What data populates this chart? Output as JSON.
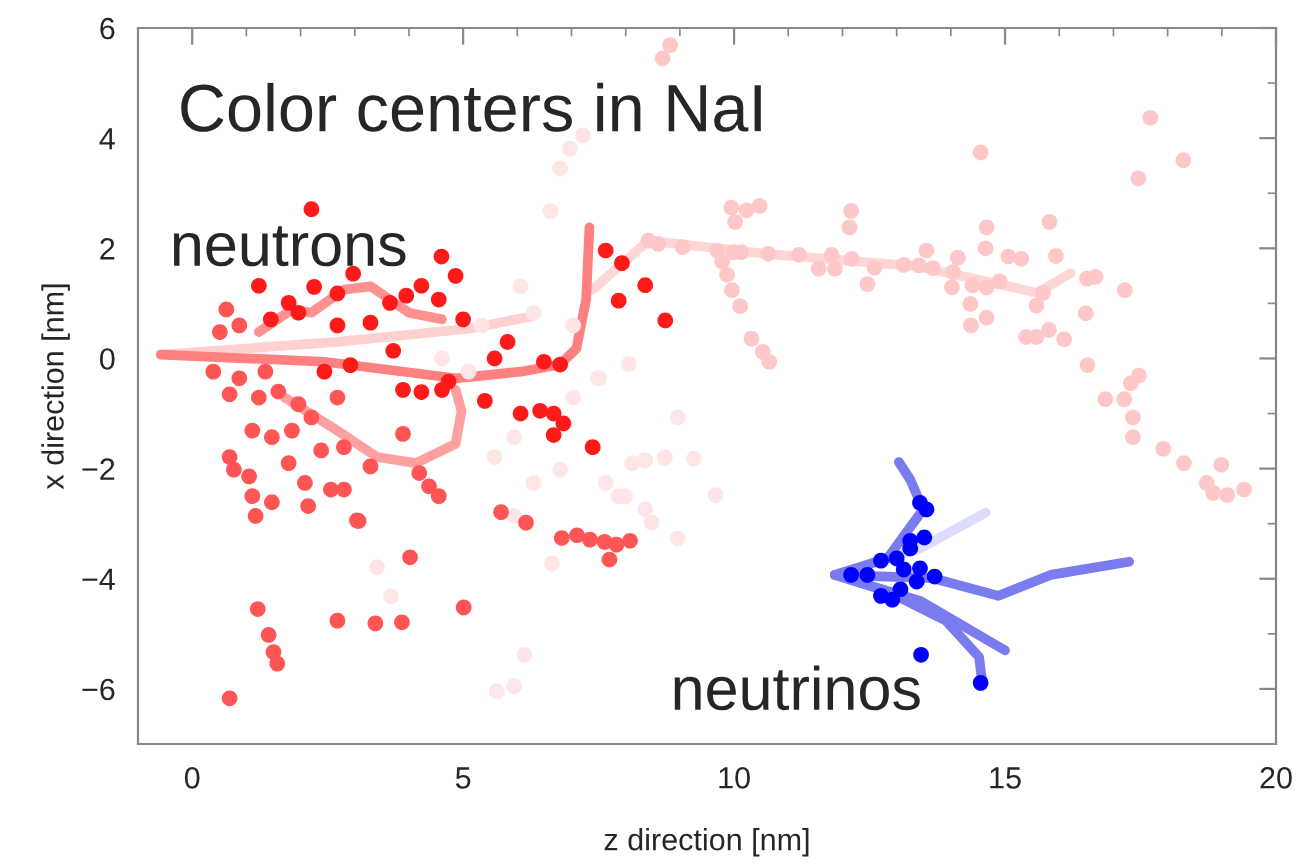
{
  "chart_data": {
    "type": "scatter",
    "title": "Color centers in NaI",
    "xlabel": "z direction [nm]",
    "ylabel": "x direction [nm]",
    "annotations": [
      "neutrons",
      "neutrinos"
    ],
    "xlim": [
      -1,
      20
    ],
    "ylim": [
      -7,
      6
    ],
    "xticks": [
      0,
      {
        "value": 1,
        "label": null
      },
      {
        "value": 2,
        "label": null
      },
      {
        "value": 3,
        "label": null
      },
      {
        "value": 4,
        "label": null
      },
      5,
      {
        "value": 6,
        "label": null
      },
      {
        "value": 7,
        "label": null
      },
      {
        "value": 8,
        "label": null
      },
      {
        "value": 9,
        "label": null
      },
      10,
      {
        "value": 11,
        "label": null
      },
      {
        "value": 12,
        "label": null
      },
      {
        "value": 13,
        "label": null
      },
      {
        "value": 14,
        "label": null
      },
      15,
      {
        "value": 16,
        "label": null
      },
      {
        "value": 17,
        "label": null
      },
      {
        "value": 18,
        "label": null
      },
      {
        "value": 19,
        "label": null
      },
      20
    ],
    "yticks": [
      -6,
      {
        "value": -5,
        "label": null
      },
      -4,
      {
        "value": -3,
        "label": null
      },
      -2,
      {
        "value": -1,
        "label": null
      },
      0,
      {
        "value": 1,
        "label": null
      },
      2,
      {
        "value": 3,
        "label": null
      },
      4,
      {
        "value": 5,
        "label": null
      },
      6
    ],
    "grid": false,
    "legend": false,
    "marker": "circle",
    "series": [
      {
        "type": "line",
        "marker": "none",
        "color": "#ffd6d6",
        "x": [
          7.39,
          8.42,
          10.6,
          13.4,
          15.6,
          16.21
        ],
        "values": [
          1.25,
          2.14,
          1.9,
          1.67,
          1.19,
          1.55
        ]
      },
      {
        "type": "line",
        "marker": "none",
        "color": "#ffd0d0",
        "x": [
          -0.58,
          2.68,
          5.1,
          6.3
        ],
        "values": [
          0.07,
          0.3,
          0.54,
          0.77
        ]
      },
      {
        "type": "line",
        "marker": "none",
        "color": "#ff8080",
        "x": [
          -0.58,
          2.44,
          4.86,
          6.06,
          6.79,
          7.09,
          7.27,
          7.33
        ],
        "values": [
          0.07,
          -0.06,
          -0.36,
          -0.24,
          -0.11,
          0.18,
          1.07,
          2.38
        ]
      },
      {
        "type": "line",
        "marker": "none",
        "color": "#ffa0a0",
        "x": [
          1.71,
          2.68,
          3.41,
          4.13,
          4.86,
          4.97,
          4.86
        ],
        "values": [
          -0.71,
          -1.31,
          -1.79,
          -1.9,
          -1.55,
          -0.95,
          -0.57
        ]
      },
      {
        "type": "line",
        "marker": "none",
        "color": "#ff9090",
        "x": [
          1.23,
          1.84,
          2.2,
          2.8,
          3.29,
          3.65,
          4.0,
          4.61
        ],
        "values": [
          0.48,
          0.89,
          0.83,
          1.25,
          1.31,
          1.07,
          0.83,
          0.71
        ]
      },
      {
        "color": "#ffe6e6",
        "x": [
          7.63,
          7.99,
          8.36,
          8.48,
          8.96,
          8.12,
          6.79,
          6.3,
          5.94,
          6.64,
          3.41,
          3.67,
          5.62,
          5.94,
          6.13,
          6.61,
          6.06,
          6.3,
          7.03,
          5.34,
          4.61,
          5.1,
          5.94,
          5.58,
          7.51,
          7.03,
          8.96,
          8.72,
          6.79,
          6.97,
          7.21,
          8.06,
          7.49,
          8.36,
          8.72,
          9.26,
          9.66,
          7.87
        ],
        "values": [
          -2.26,
          -2.5,
          -2.74,
          -2.98,
          -3.27,
          -1.9,
          -2.02,
          -2.26,
          -2.86,
          -3.72,
          -3.79,
          -4.32,
          -6.04,
          -5.95,
          -5.38,
          2.68,
          1.31,
          0.83,
          0.6,
          0.6,
          0.0,
          -0.24,
          -1.43,
          -1.79,
          -0.36,
          -0.71,
          -1.07,
          -1.79,
          3.45,
          3.81,
          4.05,
          -0.1,
          -0.36,
          -1.85,
          -1.81,
          -1.82,
          -2.48,
          -2.5
        ]
      },
      {
        "color": "#ffc8c8",
        "x": [
          8.42,
          8.6,
          9.05,
          9.69,
          9.99,
          10.13,
          10.63,
          11.2,
          11.8,
          12.17,
          12.59,
          13.13,
          13.41,
          13.67,
          14.04,
          14.4,
          14.66,
          14.9,
          15.7,
          13.55,
          14.13,
          14.64,
          15.06,
          15.3,
          15.94,
          15.82,
          14.66,
          12.16,
          12.13,
          9.95,
          10.23,
          10.47,
          10.02,
          9.78,
          9.87,
          9.96,
          10.11,
          11.56,
          11.86,
          12.46,
          14.02,
          14.36,
          14.66,
          14.37,
          15.58,
          15.39,
          15.58,
          15.81,
          16.09,
          16.51,
          16.67,
          17.21,
          16.49,
          16.52,
          16.85,
          17.2,
          17.32,
          17.47,
          17.36,
          17.36,
          17.92,
          18.3,
          18.72,
          18.84,
          19.1,
          19.41,
          18.99,
          17.46,
          17.68,
          18.29,
          14.55,
          10.32,
          10.53,
          10.65,
          8.68,
          8.82
        ],
        "values": [
          2.14,
          2.08,
          2.02,
          1.96,
          1.93,
          1.93,
          1.9,
          1.88,
          1.88,
          1.81,
          1.65,
          1.7,
          1.69,
          1.64,
          1.57,
          1.33,
          1.29,
          1.4,
          1.19,
          1.96,
          1.83,
          2.0,
          1.85,
          1.81,
          1.86,
          2.48,
          2.38,
          2.68,
          2.38,
          2.74,
          2.69,
          2.77,
          2.48,
          1.76,
          1.52,
          1.24,
          0.95,
          1.63,
          1.63,
          1.35,
          1.29,
          0.99,
          0.74,
          0.6,
          0.96,
          0.39,
          0.39,
          0.52,
          0.35,
          1.45,
          1.48,
          1.24,
          0.82,
          -0.12,
          -0.74,
          -0.74,
          -0.45,
          -0.31,
          -1.07,
          -1.43,
          -1.64,
          -1.9,
          -2.26,
          -2.44,
          -2.48,
          -2.38,
          -1.93,
          3.27,
          4.37,
          3.6,
          3.74,
          0.36,
          0.12,
          -0.06,
          5.45,
          5.69
        ]
      },
      {
        "color": "#ff5555",
        "x": [
          0.69,
          0.77,
          1.05,
          1.11,
          1.17,
          1.47,
          1.78,
          2.08,
          2.14,
          2.56,
          2.8,
          3.04,
          2.38,
          2.8,
          3.29,
          3.89,
          4.19,
          4.37,
          4.55,
          1.11,
          1.47,
          1.84,
          1.23,
          1.59,
          1.96,
          2.2,
          2.68,
          0.69,
          0.39,
          0.87,
          1.35,
          0.63,
          0.87,
          0.51,
          0.69,
          1.21,
          1.41,
          1.5,
          1.57,
          2.68,
          3.38,
          3.87,
          4.02,
          3.07,
          5.01,
          5.7,
          6.16,
          6.82,
          7.1,
          7.34,
          7.61,
          7.83,
          7.7,
          8.08
        ],
        "values": [
          -1.79,
          -2.02,
          -2.14,
          -2.5,
          -2.86,
          -2.61,
          -1.9,
          -2.26,
          -2.68,
          -2.38,
          -2.38,
          -2.94,
          -1.67,
          -1.61,
          -1.96,
          -1.37,
          -2.08,
          -2.32,
          -2.5,
          -1.31,
          -1.43,
          -1.31,
          -0.71,
          -0.6,
          -0.83,
          -1.07,
          -0.71,
          -0.65,
          -0.24,
          -0.36,
          -0.24,
          0.89,
          0.6,
          0.48,
          -6.17,
          -4.55,
          -5.02,
          -5.33,
          -5.54,
          -4.76,
          -4.81,
          -4.79,
          -3.61,
          -2.95,
          -4.52,
          -2.79,
          -2.98,
          -3.26,
          -3.21,
          -3.29,
          -3.33,
          -3.38,
          -3.65,
          -3.31
        ]
      },
      {
        "color": "#ff1a1a",
        "x": [
          2.2,
          4.6,
          4.86,
          2.25,
          2.68,
          2.97,
          4.23,
          4.55,
          5.0,
          7.63,
          7.93,
          8.36,
          7.87,
          8.73,
          1.23,
          1.78,
          1.45,
          1.96,
          2.68,
          3.29,
          3.65,
          3.95,
          5.58,
          5.82,
          6.49,
          6.79,
          5.4,
          6.06,
          6.42,
          6.67,
          6.85,
          6.67,
          7.39,
          3.89,
          4.23,
          4.61,
          4.73,
          3.71,
          2.92,
          2.44
        ],
        "values": [
          2.71,
          1.85,
          1.5,
          1.3,
          1.18,
          1.54,
          1.32,
          1.07,
          0.71,
          1.96,
          1.73,
          1.33,
          1.05,
          0.69,
          1.32,
          1.01,
          0.71,
          0.83,
          0.6,
          0.65,
          1.01,
          1.14,
          0.0,
          0.3,
          -0.06,
          -0.11,
          -0.77,
          -1.0,
          -0.95,
          -1.0,
          -1.18,
          -1.39,
          -1.61,
          -0.57,
          -0.61,
          -0.57,
          -0.42,
          0.14,
          -0.12,
          -0.24
        ]
      },
      {
        "type": "line",
        "marker": "none",
        "color": "#dcdcfc",
        "x": [
          11.86,
          13.43,
          14.64
        ],
        "values": [
          -3.93,
          -3.45,
          -2.8
        ]
      },
      {
        "type": "line",
        "marker": "none",
        "color": "#7b7bf0",
        "x": [
          11.86,
          13.67,
          14.88,
          15.84,
          17.29
        ],
        "values": [
          -3.93,
          -3.99,
          -4.31,
          -3.93,
          -3.69
        ]
      },
      {
        "type": "line",
        "marker": "none",
        "color": "#7b7bf0",
        "x": [
          11.86,
          12.83,
          13.49,
          13.25,
          13.04
        ],
        "values": [
          -3.93,
          -3.63,
          -2.74,
          -2.2,
          -1.88
        ]
      },
      {
        "type": "line",
        "marker": "none",
        "color": "#7b7bf0",
        "x": [
          11.86,
          12.83,
          13.91,
          14.52,
          14.58
        ],
        "values": [
          -3.93,
          -4.23,
          -4.76,
          -5.42,
          -5.89
        ]
      },
      {
        "type": "line",
        "marker": "none",
        "color": "#7b7bf0",
        "x": [
          11.86,
          13.43,
          15.0
        ],
        "values": [
          -3.93,
          -4.4,
          -5.3
        ]
      },
      {
        "color": "#0000ff",
        "x": [
          13.43,
          13.55,
          13.25,
          13.51,
          13.25,
          13.0,
          12.71,
          13.13,
          13.43,
          13.7,
          13.37,
          12.46,
          12.16,
          13.07,
          12.71,
          12.92,
          13.45,
          14.55
        ],
        "values": [
          -2.62,
          -2.74,
          -3.31,
          -3.25,
          -3.45,
          -3.63,
          -3.67,
          -3.83,
          -3.81,
          -3.96,
          -4.05,
          -3.93,
          -3.93,
          -4.19,
          -4.31,
          -4.38,
          -5.38,
          -5.89
        ]
      }
    ]
  }
}
